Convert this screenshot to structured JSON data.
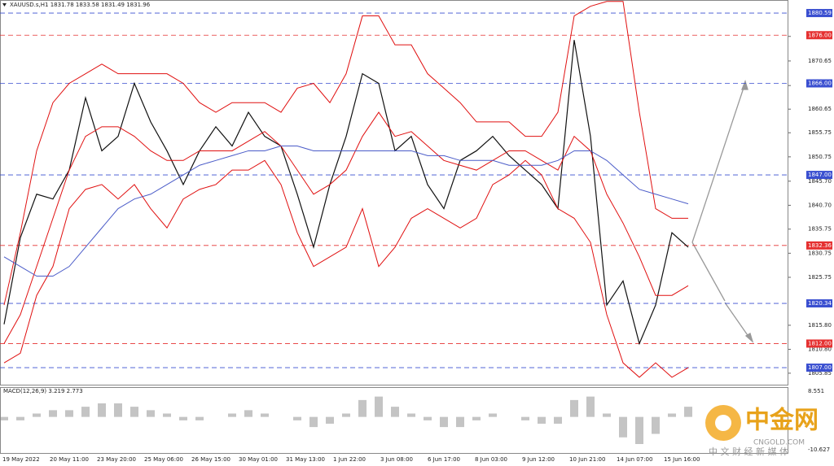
{
  "chart_data": {
    "type": "line",
    "title": "XAUUSD.s,H1  1831.78 1833.58 1831.49 1831.96",
    "indicator_title": "MACD(12,26,9) 3.219 2.773",
    "watermark": {
      "name": "中金网",
      "site": "CNGOLD.COM",
      "slogan": "中 文 财 经 新 媒 体"
    },
    "x_labels": [
      "19 May 2022",
      "20 May 11:00",
      "23 May 20:00",
      "25 May 06:00",
      "26 May 15:00",
      "30 May 01:00",
      "31 May 13:00",
      "1 Jun 22:00",
      "3 Jun 08:00",
      "6 Jun 17:00",
      "8 Jun 03:00",
      "9 Jun 12:00",
      "10 Jun 21:00",
      "14 Jun 07:00",
      "15 Jun 16:00"
    ],
    "ylim": [
      1803.3,
      1883.3
    ],
    "yticks": [
      1875.75,
      1870.65,
      1865.55,
      1860.65,
      1855.75,
      1850.75,
      {
        "value": 1845.7,
        "label": "1845.70"
      },
      {
        "value": 1840.7,
        "label": "1840.70"
      },
      1835.75,
      1830.75,
      1825.75,
      {
        "value": 1815.8,
        "label": "1815.80"
      },
      {
        "value": 1810.8,
        "label": "1810.80"
      },
      1805.85
    ],
    "levels": [
      {
        "value": 1880.59,
        "label": "1880.59",
        "color": "#3a4fd0"
      },
      {
        "value": 1876,
        "label": "1876.00",
        "color": "#e53030"
      },
      {
        "value": 1866,
        "label": "1866.00",
        "color": "#3a4fd0"
      },
      {
        "value": 1847,
        "label": "1847.00",
        "color": "#3a4fd0"
      },
      {
        "value": 1832.36,
        "label": "1832.36",
        "color": "#e53030"
      },
      {
        "value": 1820.34,
        "label": "1820.34",
        "color": "#3a4fd0"
      },
      {
        "value": 1812,
        "label": "1812.00",
        "color": "#e53030"
      },
      {
        "value": 1807,
        "label": "1807.00",
        "color": "#3a4fd0"
      }
    ],
    "series": [
      {
        "name": "price",
        "color": "#111111",
        "values": [
          1816,
          1834,
          1843,
          1842,
          1848,
          1863,
          1852,
          1855,
          1866,
          1858,
          1852,
          1845,
          1852,
          1857,
          1853,
          1860,
          1855,
          1853,
          1843,
          1832,
          1845,
          1855,
          1868,
          1866,
          1852,
          1855,
          1845,
          1840,
          1850,
          1852,
          1855,
          1851,
          1848,
          1845,
          1840,
          1875,
          1855,
          1820,
          1825,
          1812,
          1820,
          1835,
          1832
        ]
      },
      {
        "name": "upper band",
        "color": "#e01010",
        "values": [
          1820,
          1835,
          1852,
          1862,
          1866,
          1868,
          1870,
          1868,
          1868,
          1868,
          1868,
          1866,
          1862,
          1860,
          1862,
          1862,
          1862,
          1860,
          1865,
          1866,
          1862,
          1868,
          1880,
          1880,
          1874,
          1874,
          1868,
          1865,
          1862,
          1858,
          1858,
          1858,
          1855,
          1855,
          1860,
          1880,
          1882,
          1883,
          1883,
          1860,
          1840,
          1838,
          1838
        ]
      },
      {
        "name": "middle band",
        "color": "#e01010",
        "values": [
          1812,
          1818,
          1828,
          1838,
          1848,
          1855,
          1857,
          1857,
          1855,
          1852,
          1850,
          1850,
          1852,
          1852,
          1852,
          1854,
          1856,
          1853,
          1848,
          1843,
          1845,
          1848,
          1855,
          1860,
          1855,
          1856,
          1853,
          1850,
          1849,
          1848,
          1850,
          1852,
          1852,
          1850,
          1848,
          1855,
          1852,
          1843,
          1837,
          1830,
          1822,
          1822,
          1824
        ]
      },
      {
        "name": "lower band",
        "color": "#e01010",
        "values": [
          1808,
          1810,
          1822,
          1828,
          1840,
          1844,
          1845,
          1842,
          1845,
          1840,
          1836,
          1842,
          1844,
          1845,
          1848,
          1848,
          1850,
          1845,
          1835,
          1828,
          1830,
          1832,
          1840,
          1828,
          1832,
          1838,
          1840,
          1838,
          1836,
          1838,
          1845,
          1847,
          1850,
          1847,
          1840,
          1838,
          1833,
          1818,
          1808,
          1805,
          1808,
          1805,
          1807
        ]
      },
      {
        "name": "moving average",
        "color": "#4a5bc8",
        "values": [
          1830,
          1828,
          1826,
          1826,
          1828,
          1832,
          1836,
          1840,
          1842,
          1843,
          1845,
          1847,
          1849,
          1850,
          1851,
          1852,
          1852,
          1853,
          1853,
          1852,
          1852,
          1852,
          1852,
          1852,
          1852,
          1852,
          1851,
          1851,
          1850,
          1850,
          1850,
          1849,
          1849,
          1849,
          1850,
          1852,
          1852,
          1850,
          1847,
          1844,
          1843,
          1842,
          1841
        ]
      }
    ],
    "macd": {
      "color": "#888888",
      "ylim": [
        -10.627,
        8.551
      ],
      "yticks": [
        8.551,
        -10.627
      ],
      "values": [
        -1,
        -1,
        1,
        2,
        2,
        3,
        4,
        4,
        3,
        2,
        1,
        -1,
        -1,
        0,
        1,
        2,
        1,
        0,
        -1,
        -3,
        -2,
        1,
        5,
        6,
        3,
        1,
        -1,
        -3,
        -3,
        -1,
        1,
        0,
        -1,
        -2,
        -2,
        5,
        6,
        1,
        -6,
        -8,
        -5,
        1,
        3
      ]
    }
  }
}
